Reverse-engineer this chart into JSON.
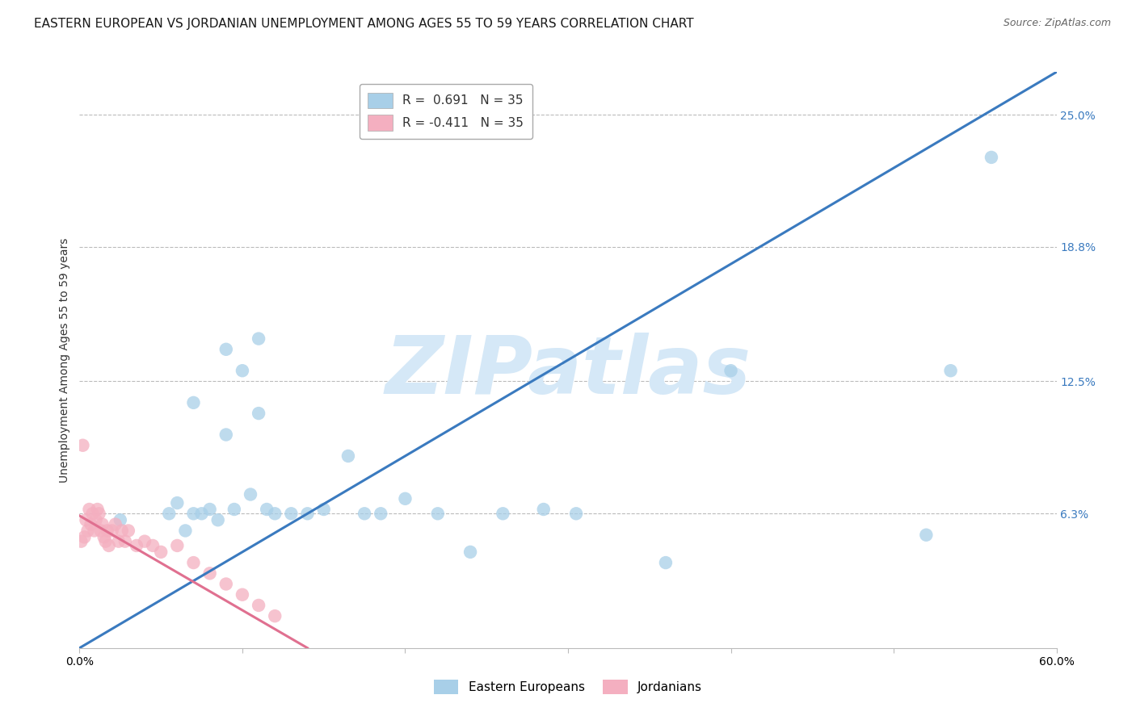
{
  "title": "EASTERN EUROPEAN VS JORDANIAN UNEMPLOYMENT AMONG AGES 55 TO 59 YEARS CORRELATION CHART",
  "source": "Source: ZipAtlas.com",
  "ylabel": "Unemployment Among Ages 55 to 59 years",
  "xlim": [
    0.0,
    0.6
  ],
  "ylim": [
    0.0,
    0.27
  ],
  "yticks_right": [
    0.063,
    0.125,
    0.188,
    0.25
  ],
  "yticks_right_labels": [
    "6.3%",
    "12.5%",
    "18.8%",
    "25.0%"
  ],
  "legend_blue_text": "R =  0.691   N = 35",
  "legend_pink_text": "R = -0.411   N = 35",
  "blue_color": "#a8cfe8",
  "pink_color": "#f4afc0",
  "blue_line_color": "#3a7abf",
  "pink_line_color": "#e07090",
  "watermark": "ZIPatlas",
  "watermark_color": "#d5e8f7",
  "blue_scatter_x": [
    0.025,
    0.055,
    0.06,
    0.065,
    0.07,
    0.075,
    0.08,
    0.085,
    0.09,
    0.095,
    0.1,
    0.105,
    0.11,
    0.115,
    0.12,
    0.13,
    0.14,
    0.15,
    0.165,
    0.175,
    0.185,
    0.2,
    0.22,
    0.24,
    0.26,
    0.285,
    0.305,
    0.36,
    0.4,
    0.52,
    0.535,
    0.56,
    0.07,
    0.09,
    0.11
  ],
  "blue_scatter_y": [
    0.06,
    0.063,
    0.068,
    0.055,
    0.115,
    0.063,
    0.065,
    0.06,
    0.1,
    0.065,
    0.13,
    0.072,
    0.11,
    0.065,
    0.063,
    0.063,
    0.063,
    0.065,
    0.09,
    0.063,
    0.063,
    0.07,
    0.063,
    0.045,
    0.063,
    0.065,
    0.063,
    0.04,
    0.13,
    0.053,
    0.13,
    0.23,
    0.063,
    0.14,
    0.145
  ],
  "pink_scatter_x": [
    0.001,
    0.002,
    0.003,
    0.004,
    0.005,
    0.006,
    0.007,
    0.008,
    0.009,
    0.01,
    0.011,
    0.012,
    0.013,
    0.014,
    0.015,
    0.016,
    0.017,
    0.018,
    0.02,
    0.022,
    0.024,
    0.026,
    0.028,
    0.03,
    0.035,
    0.04,
    0.045,
    0.05,
    0.06,
    0.07,
    0.08,
    0.09,
    0.1,
    0.11,
    0.12
  ],
  "pink_scatter_y": [
    0.05,
    0.095,
    0.052,
    0.06,
    0.055,
    0.065,
    0.058,
    0.063,
    0.055,
    0.06,
    0.065,
    0.063,
    0.055,
    0.058,
    0.052,
    0.05,
    0.055,
    0.048,
    0.055,
    0.058,
    0.05,
    0.055,
    0.05,
    0.055,
    0.048,
    0.05,
    0.048,
    0.045,
    0.048,
    0.04,
    0.035,
    0.03,
    0.025,
    0.02,
    0.015
  ],
  "blue_line_x_start": 0.0,
  "blue_line_x_end": 0.6,
  "blue_line_y_start": 0.0,
  "blue_line_y_end": 0.27,
  "pink_line_x_start": 0.0,
  "pink_line_x_end": 0.14,
  "pink_line_y_start": 0.062,
  "pink_line_y_end": 0.0,
  "background_color": "#ffffff",
  "grid_color": "#bbbbbb",
  "title_fontsize": 11,
  "axis_label_fontsize": 10,
  "tick_fontsize": 10,
  "legend_fontsize": 11
}
